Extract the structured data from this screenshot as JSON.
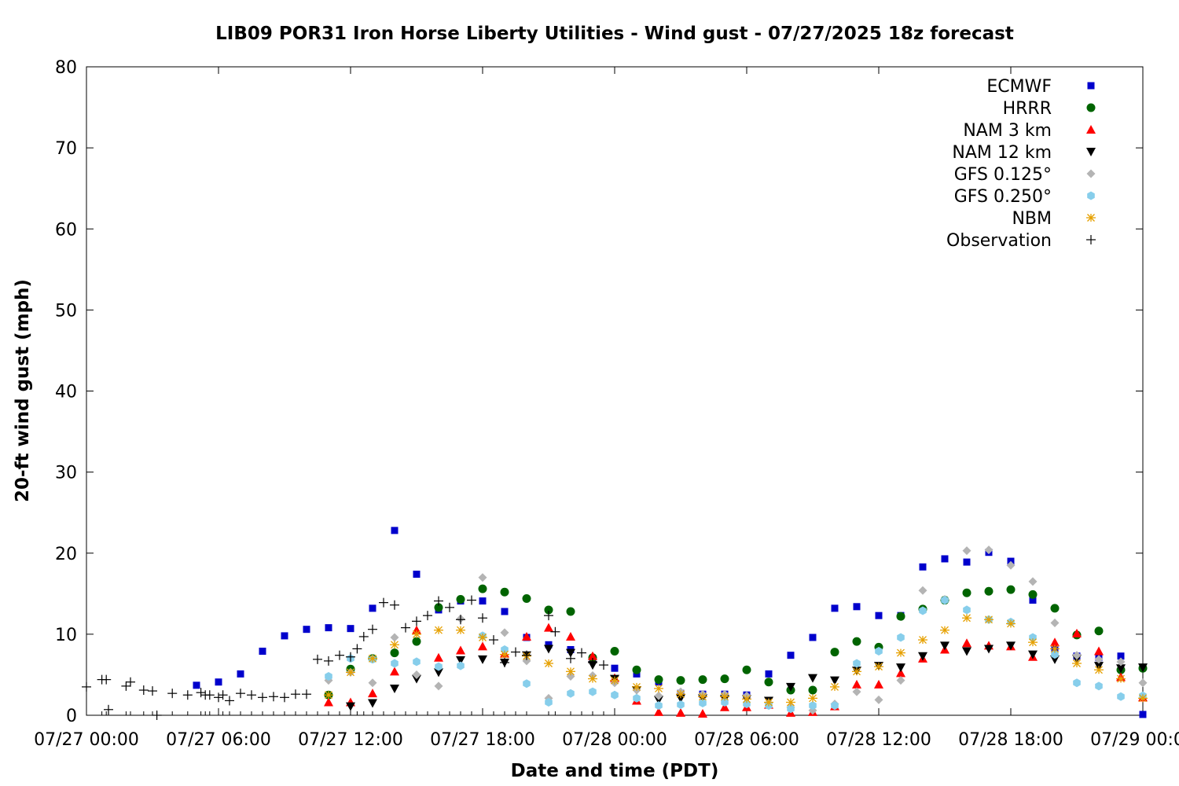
{
  "chart_data": {
    "type": "scatter",
    "title": "LIB09 POR31 Iron Horse Liberty Utilities - Wind gust - 07/27/2025 18z forecast",
    "xlabel": "Date and time (PDT)",
    "ylabel": "20-ft wind gust (mph)",
    "xlim": [
      "07/27 00:00",
      "07/29 00:00"
    ],
    "ylim": [
      0,
      80
    ],
    "y_ticks": [
      0,
      10,
      20,
      30,
      40,
      50,
      60,
      70,
      80
    ],
    "x_ticks": [
      {
        "hour": 0,
        "label": "07/27 00:00"
      },
      {
        "hour": 6,
        "label": "07/27 06:00"
      },
      {
        "hour": 12,
        "label": "07/27 12:00"
      },
      {
        "hour": 18,
        "label": "07/27 18:00"
      },
      {
        "hour": 24,
        "label": "07/28 00:00"
      },
      {
        "hour": 30,
        "label": "07/28 06:00"
      },
      {
        "hour": 36,
        "label": "07/28 12:00"
      },
      {
        "hour": 42,
        "label": "07/28 18:00"
      },
      {
        "hour": 48,
        "label": "07/29 00:00"
      }
    ],
    "x_unit": "hours since 07/27 00:00 PDT",
    "legend_position": "top-right",
    "grid": false,
    "series": [
      {
        "name": "ECMWF",
        "marker": "square",
        "color": "#0000cc",
        "x": [
          5,
          6,
          7,
          8,
          9,
          10,
          11,
          12,
          13,
          14,
          15,
          16,
          17,
          18,
          19,
          20,
          21,
          22,
          23,
          24,
          25,
          26,
          27,
          28,
          29,
          30,
          31,
          32,
          33,
          34,
          35,
          36,
          37,
          38,
          39,
          40,
          41,
          42,
          43,
          44,
          45,
          46,
          47,
          48
        ],
        "y": [
          3.7,
          4.1,
          5.1,
          7.9,
          9.8,
          10.6,
          10.8,
          10.7,
          13.2,
          22.8,
          17.4,
          13.0,
          14.1,
          14.1,
          12.8,
          9.6,
          8.7,
          8.1,
          7.0,
          5.8,
          5.1,
          4.1,
          2.7,
          2.6,
          2.6,
          2.5,
          5.1,
          7.4,
          9.6,
          13.2,
          13.4,
          12.3,
          12.3,
          18.3,
          19.3,
          18.9,
          20.1,
          19.0,
          14.2,
          8.2,
          7.3,
          7.1,
          7.3,
          0.1
        ]
      },
      {
        "name": "HRRR",
        "marker": "circle",
        "color": "#006400",
        "x": [
          11,
          12,
          13,
          14,
          15,
          16,
          17,
          18,
          19,
          20,
          21,
          22,
          23,
          24,
          25,
          26,
          27,
          28,
          29,
          30,
          31,
          32,
          33,
          34,
          35,
          36,
          37,
          38,
          39,
          40,
          41,
          42,
          43,
          44,
          45,
          46,
          47,
          48
        ],
        "y": [
          2.5,
          5.7,
          7.0,
          7.7,
          9.1,
          13.3,
          14.3,
          15.6,
          15.2,
          14.4,
          13.0,
          12.8,
          7.1,
          7.9,
          5.6,
          4.4,
          4.3,
          4.4,
          4.5,
          5.6,
          4.1,
          3.1,
          3.1,
          7.8,
          9.1,
          8.4,
          12.2,
          13.1,
          14.2,
          15.1,
          15.3,
          15.5,
          14.9,
          13.2,
          9.9,
          10.4,
          5.6,
          5.8
        ]
      },
      {
        "name": "NAM 3 km",
        "marker": "triangle-up",
        "color": "#ff0000",
        "x": [
          11,
          12,
          13,
          14,
          15,
          16,
          17,
          18,
          19,
          20,
          21,
          22,
          23,
          24,
          25,
          26,
          27,
          28,
          29,
          30,
          31,
          32,
          33,
          34,
          35,
          36,
          37,
          38,
          39,
          40,
          41,
          42,
          43,
          44,
          45,
          46,
          47,
          48
        ],
        "y": [
          1.6,
          1.6,
          2.7,
          5.4,
          10.5,
          7.1,
          8.0,
          8.5,
          7.6,
          9.7,
          10.8,
          9.7,
          7.3,
          4.6,
          1.8,
          0.4,
          0.3,
          0.2,
          1.0,
          1.0,
          1.3,
          0.3,
          0.4,
          1.1,
          3.8,
          3.8,
          5.2,
          7.0,
          8.1,
          8.9,
          8.6,
          8.5,
          7.2,
          9.0,
          10.1,
          7.9,
          4.7,
          2.2
        ]
      },
      {
        "name": "NAM 12 km",
        "marker": "triangle-down",
        "color": "#000000",
        "x": [
          12,
          13,
          14,
          15,
          16,
          17,
          18,
          19,
          20,
          21,
          22,
          23,
          24,
          25,
          26,
          27,
          28,
          29,
          30,
          31,
          32,
          33,
          34,
          35,
          36,
          37,
          38,
          39,
          40,
          41,
          42,
          43,
          44,
          45,
          46,
          47,
          48
        ],
        "y": [
          1.1,
          1.5,
          3.3,
          4.5,
          5.3,
          6.8,
          6.9,
          6.5,
          7.4,
          8.2,
          7.7,
          6.2,
          4.5,
          3.1,
          1.9,
          2.1,
          2.1,
          2.0,
          2.0,
          1.8,
          3.5,
          4.6,
          4.3,
          5.5,
          6.1,
          5.9,
          7.3,
          8.6,
          7.9,
          8.2,
          8.6,
          7.5,
          6.9,
          7.0,
          6.1,
          5.8,
          5.9
        ]
      },
      {
        "name": "GFS 0.125°",
        "marker": "diamond",
        "color": "#b4b4b4",
        "x": [
          11,
          12,
          13,
          14,
          15,
          16,
          17,
          18,
          19,
          20,
          21,
          22,
          23,
          24,
          25,
          26,
          27,
          28,
          29,
          30,
          31,
          32,
          33,
          34,
          35,
          36,
          37,
          38,
          39,
          40,
          41,
          42,
          43,
          44,
          45,
          46,
          47,
          48
        ],
        "y": [
          4.3,
          5.3,
          4.0,
          9.6,
          5.0,
          3.6,
          11.9,
          17.0,
          10.2,
          6.7,
          2.1,
          4.8,
          4.9,
          4.0,
          3.1,
          2.4,
          2.9,
          2.6,
          2.6,
          2.4,
          1.5,
          1.0,
          0.6,
          1.4,
          2.9,
          1.9,
          4.3,
          15.4,
          14.3,
          20.3,
          20.4,
          18.5,
          16.5,
          11.4,
          7.4,
          6.9,
          6.6,
          4.0
        ]
      },
      {
        "name": "GFS 0.250°",
        "marker": "hexagon",
        "color": "#87ceeb",
        "x": [
          11,
          12,
          13,
          14,
          15,
          16,
          17,
          18,
          19,
          20,
          21,
          22,
          23,
          24,
          25,
          26,
          27,
          28,
          29,
          30,
          31,
          32,
          33,
          34,
          35,
          36,
          37,
          38,
          39,
          40,
          41,
          42,
          43,
          44,
          45,
          46,
          47,
          48
        ],
        "y": [
          4.8,
          7.0,
          6.9,
          6.4,
          6.6,
          6.0,
          6.1,
          9.8,
          8.1,
          3.9,
          1.6,
          2.7,
          2.9,
          2.5,
          2.1,
          1.2,
          1.3,
          1.5,
          1.6,
          1.4,
          1.2,
          0.8,
          1.2,
          1.2,
          6.4,
          7.9,
          9.6,
          12.9,
          14.2,
          13.0,
          11.8,
          11.5,
          9.6,
          7.5,
          4.0,
          3.6,
          2.3,
          2.4
        ]
      },
      {
        "name": "NBM",
        "marker": "asterisk",
        "color": "#e6a000",
        "x": [
          11,
          12,
          13,
          14,
          15,
          16,
          17,
          18,
          19,
          20,
          21,
          22,
          23,
          24,
          25,
          26,
          27,
          28,
          29,
          30,
          31,
          32,
          33,
          34,
          35,
          36,
          37,
          38,
          39,
          40,
          41,
          42,
          43,
          44,
          45,
          46,
          47,
          48
        ],
        "y": [
          2.5,
          5.3,
          7.0,
          8.7,
          10.0,
          10.5,
          10.5,
          9.6,
          7.5,
          7.3,
          6.4,
          5.4,
          4.5,
          4.3,
          3.5,
          3.3,
          2.6,
          2.3,
          2.3,
          2.0,
          1.6,
          1.6,
          2.1,
          3.5,
          5.4,
          6.0,
          7.7,
          9.3,
          10.5,
          12.0,
          11.8,
          11.3,
          9.0,
          8.2,
          6.4,
          5.6,
          4.5,
          2.1
        ]
      },
      {
        "name": "Observation",
        "marker": "plus",
        "color": "#000000",
        "x": [
          0.0,
          0.7,
          0.9,
          1.0,
          1.8,
          2.0,
          2.6,
          3.0,
          3.2,
          3.9,
          4.6,
          5.2,
          5.4,
          5.6,
          6.0,
          6.2,
          6.5,
          7.0,
          7.5,
          8.0,
          8.5,
          9.0,
          9.5,
          10.0,
          10.5,
          11.0,
          11.5,
          12.0,
          12.3,
          12.6,
          13.0,
          13.5,
          14.0,
          14.5,
          15.0,
          15.5,
          16.0,
          16.5,
          17.0,
          17.5,
          18.0,
          18.5,
          19.0,
          19.5,
          20.0,
          21.0,
          21.3,
          22.0,
          22.5,
          23.0,
          23.5
        ],
        "y": [
          3.5,
          4.4,
          4.4,
          0.7,
          3.6,
          4.1,
          3.1,
          3.0,
          0.0,
          2.7,
          2.5,
          2.8,
          2.5,
          2.5,
          2.2,
          2.5,
          1.8,
          2.7,
          2.5,
          2.2,
          2.3,
          2.2,
          2.6,
          2.6,
          6.9,
          6.7,
          7.4,
          7.2,
          8.2,
          9.7,
          10.6,
          13.9,
          13.6,
          10.8,
          11.6,
          12.3,
          14.1,
          13.3,
          11.8,
          14.2,
          12.0,
          9.3,
          6.5,
          7.8,
          7.4,
          12.3,
          10.3,
          7.0,
          7.7,
          6.5,
          6.2
        ]
      }
    ]
  }
}
